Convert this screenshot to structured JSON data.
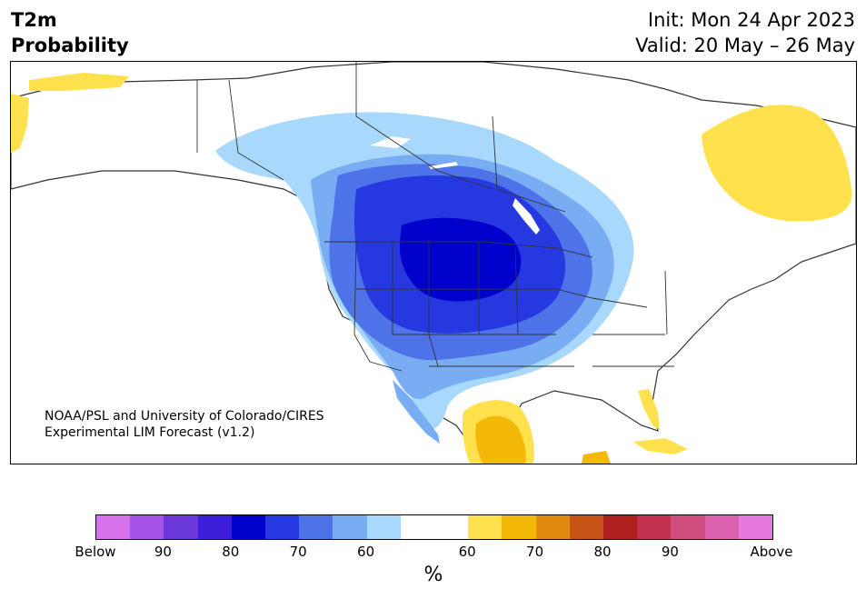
{
  "header": {
    "title_line1": "T2m",
    "title_line2": "Probability",
    "init_text": "Init: Mon 24 Apr 2023",
    "valid_text": "Valid: 20 May – 26 May"
  },
  "credit": {
    "line1": "NOAA/PSL and University of Colorado/CIRES",
    "line2": "Experimental LIM Forecast (v1.2)"
  },
  "colorbar": {
    "colors": [
      "#d672ea",
      "#a453e6",
      "#6a38d9",
      "#3c1fd8",
      "#0000cc",
      "#2638e0",
      "#4e72e8",
      "#79adf3",
      "#a8d8fb",
      "#ffffff",
      "#ffffff",
      "#ffe14d",
      "#f4b808",
      "#e08a0e",
      "#c75317",
      "#b0201f",
      "#c23250",
      "#d04e7e",
      "#dc62b0",
      "#e779dd"
    ],
    "tick_labels": [
      "Below",
      "90",
      "80",
      "70",
      "60",
      "60",
      "70",
      "80",
      "90",
      "Above"
    ],
    "unit": "%"
  },
  "map": {
    "cold_colors": {
      "p50": "#a8d8fb",
      "p60": "#79adf3",
      "p70": "#4e72e8",
      "p80": "#2638e0",
      "p90": "#0000cc"
    },
    "warm_colors": {
      "p50": "#ffe14d",
      "p60": "#f4b808"
    },
    "border_color": "#333333"
  }
}
